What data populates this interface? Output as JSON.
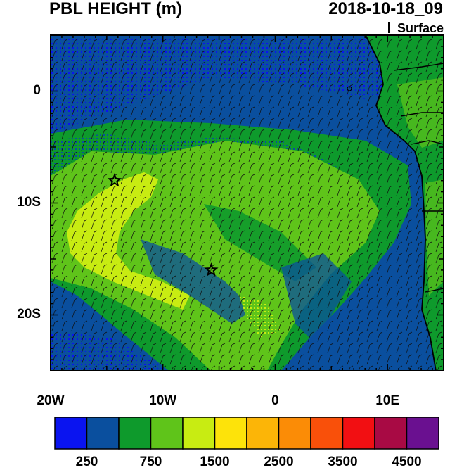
{
  "header": {
    "title": "PBL HEIGHT (m)",
    "datetime": "2018-10-18_09",
    "level": "Surface"
  },
  "axes": {
    "y_labels": [
      {
        "value": 0,
        "label": "0"
      },
      {
        "value": -10,
        "label": "10S"
      },
      {
        "value": -20,
        "label": "20S"
      }
    ],
    "x_labels": [
      {
        "value": -20,
        "label": "20W"
      },
      {
        "value": -10,
        "label": "10W"
      },
      {
        "value": 0,
        "label": "0"
      },
      {
        "value": 10,
        "label": "10E"
      }
    ],
    "lon_range": [
      -20,
      15
    ],
    "lat_range": [
      -25,
      5
    ]
  },
  "markers": [
    {
      "name": "star-marker-north",
      "lon": -14.3,
      "lat": -8.0,
      "symbol": "☆"
    },
    {
      "name": "star-marker-south",
      "lon": -5.7,
      "lat": -16.0,
      "symbol": "☆"
    }
  ],
  "colorbar": {
    "colors": [
      "#0a14f0",
      "#0a4f9e",
      "#0e9a2c",
      "#5fc41a",
      "#c8ec12",
      "#fde30a",
      "#fcb507",
      "#fb8c06",
      "#f9500a",
      "#f20f12",
      "#a80a44",
      "#6a1090"
    ],
    "labels": [
      {
        "label": "250",
        "index": 1
      },
      {
        "label": "750",
        "index": 3
      },
      {
        "label": "1500",
        "index": 5
      },
      {
        "label": "2500",
        "index": 7
      },
      {
        "label": "3500",
        "index": 9
      },
      {
        "label": "4500",
        "index": 11
      }
    ]
  },
  "legend_colors": {
    "ocean_deep": "#0a4f9e",
    "ocean_low": "#0a14f0",
    "mid_green": "#0e9a2c",
    "light_green": "#5fc41a",
    "yellow_green": "#c8ec12",
    "yellow": "#fde30a"
  }
}
